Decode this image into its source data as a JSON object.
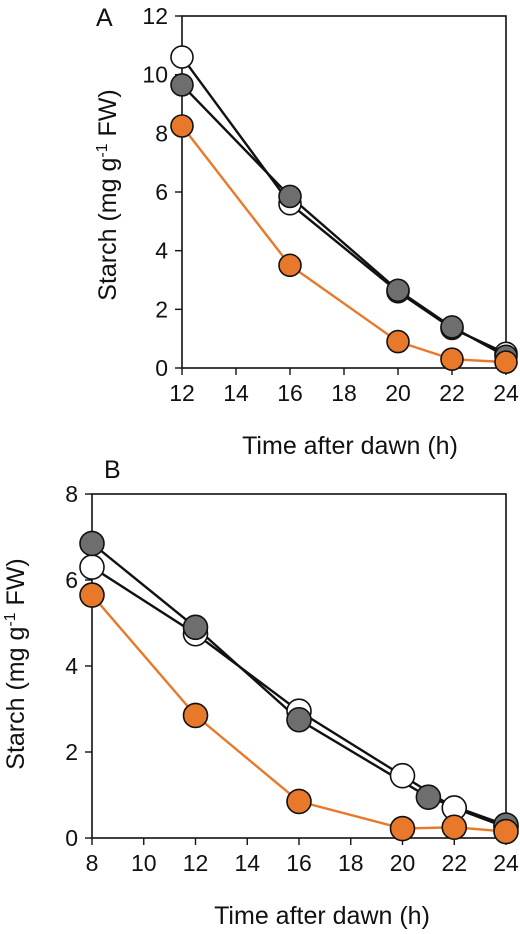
{
  "chart_data": [
    {
      "type": "line",
      "panel_label": "A",
      "xlabel": "Time after dawn (h)",
      "ylabel_main": "Starch (mg g",
      "ylabel_sup": "-1",
      "ylabel_tail": " FW)",
      "xlim": [
        12,
        24
      ],
      "ylim": [
        0,
        12
      ],
      "xticks": [
        12,
        14,
        16,
        18,
        20,
        22,
        24
      ],
      "yticks": [
        0,
        2,
        4,
        6,
        8,
        10,
        12
      ],
      "series": [
        {
          "color": "#ffffff",
          "line": "#111111",
          "x": [
            12,
            16,
            20,
            22,
            24
          ],
          "y": [
            10.6,
            5.6,
            2.6,
            1.35,
            0.5
          ]
        },
        {
          "color": "#6e6e6e",
          "line": "#111111",
          "x": [
            12,
            16,
            20,
            22,
            24
          ],
          "y": [
            9.65,
            5.85,
            2.65,
            1.4,
            0.4
          ]
        },
        {
          "color": "#e8792a",
          "line": "#e8792a",
          "x": [
            12,
            16,
            20,
            22,
            24
          ],
          "y": [
            8.25,
            3.5,
            0.9,
            0.3,
            0.2
          ]
        }
      ]
    },
    {
      "type": "line",
      "panel_label": "B",
      "xlabel": "Time after dawn (h)",
      "ylabel_main": "Starch (mg g",
      "ylabel_sup": "-1",
      "ylabel_tail": " FW)",
      "xlim": [
        8,
        24
      ],
      "ylim": [
        0,
        8
      ],
      "xticks": [
        8,
        10,
        12,
        14,
        16,
        18,
        20,
        22,
        24
      ],
      "yticks": [
        0,
        2,
        4,
        6,
        8
      ],
      "series": [
        {
          "color": "#ffffff",
          "line": "#111111",
          "x": [
            8,
            12,
            16,
            20,
            22,
            24
          ],
          "y": [
            6.3,
            4.75,
            2.95,
            1.45,
            0.7,
            0.25
          ]
        },
        {
          "color": "#6e6e6e",
          "line": "#111111",
          "x": [
            8,
            12,
            16,
            21,
            24
          ],
          "y": [
            6.85,
            4.9,
            2.75,
            0.95,
            0.3
          ]
        },
        {
          "color": "#e8792a",
          "line": "#e8792a",
          "x": [
            8,
            12,
            16,
            20,
            22,
            24
          ],
          "y": [
            5.65,
            2.85,
            0.85,
            0.22,
            0.25,
            0.15
          ]
        }
      ]
    }
  ]
}
